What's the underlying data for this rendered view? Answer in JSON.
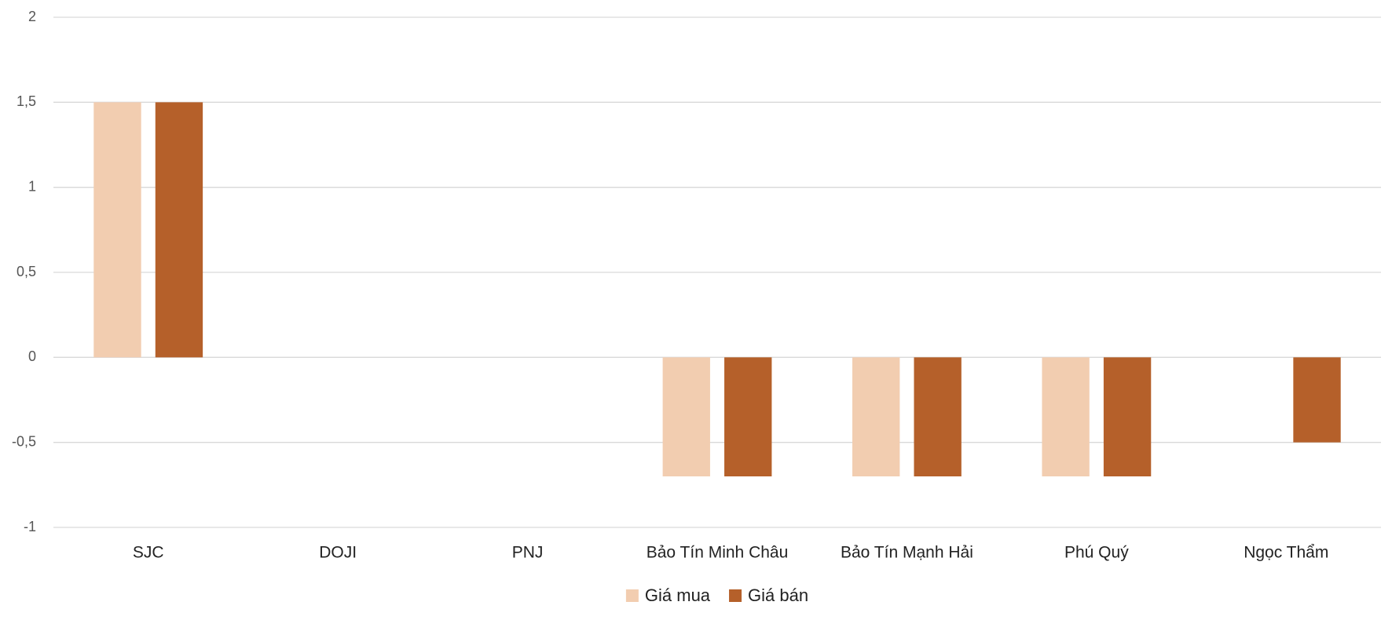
{
  "chart_data": {
    "type": "bar",
    "categories": [
      "SJC",
      "DOJI",
      "PNJ",
      "Bảo Tín Minh Châu",
      "Bảo Tín Mạnh Hải",
      "Phú Quý",
      "Ngọc Thẩm"
    ],
    "series": [
      {
        "name": "Giá mua",
        "color": "#f2cdb0",
        "values": [
          1.5,
          0,
          0,
          -0.7,
          -0.7,
          -0.7,
          0
        ]
      },
      {
        "name": "Giá bán",
        "color": "#b5602a",
        "values": [
          1.5,
          0,
          0,
          -0.7,
          -0.7,
          -0.7,
          -0.5
        ]
      }
    ],
    "ylim": [
      -1,
      2
    ],
    "yticks": [
      -1,
      {
        "value": -0.5,
        "label": "-0,5"
      },
      0,
      {
        "value": 0.5,
        "label": "0,5"
      },
      1,
      {
        "value": 1.5,
        "label": "1,5"
      },
      2
    ],
    "grid": true,
    "legend": "bottom"
  }
}
